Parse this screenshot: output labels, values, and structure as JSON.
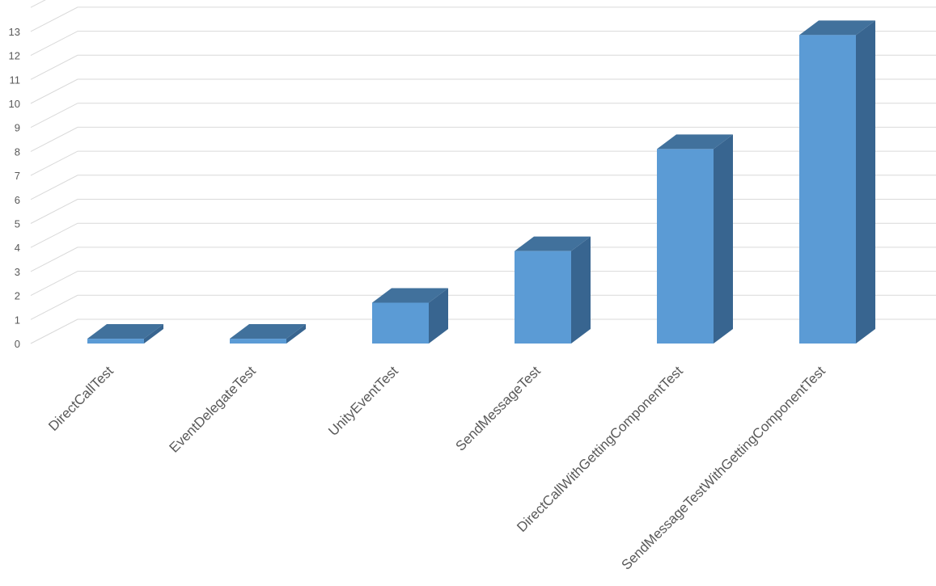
{
  "chart_data": {
    "type": "bar",
    "style": "3d-column",
    "title": "",
    "xlabel": "",
    "ylabel": "",
    "categories": [
      "DirectCallTest",
      "EventDelegateTest",
      "UnityEventTest",
      "SendMessageTest",
      "DirectCallWithGettingComponentTest",
      "SendMessageTestWithGettingComponentTest"
    ],
    "series": [
      {
        "values": [
          0.2,
          0.2,
          1.7,
          3.85,
          8.1,
          12.85
        ]
      }
    ],
    "ylim": [
      0,
      14
    ],
    "yticks": [
      0,
      1,
      2,
      3,
      4,
      5,
      6,
      7,
      8,
      9,
      10,
      11,
      12,
      13
    ],
    "grid": true,
    "legend": "none",
    "colors": {
      "bar_front": "#5b9bd5",
      "bar_top": "#41719c",
      "bar_side": "#386590",
      "grid": "#d9d9d9",
      "text": "#595959"
    }
  }
}
